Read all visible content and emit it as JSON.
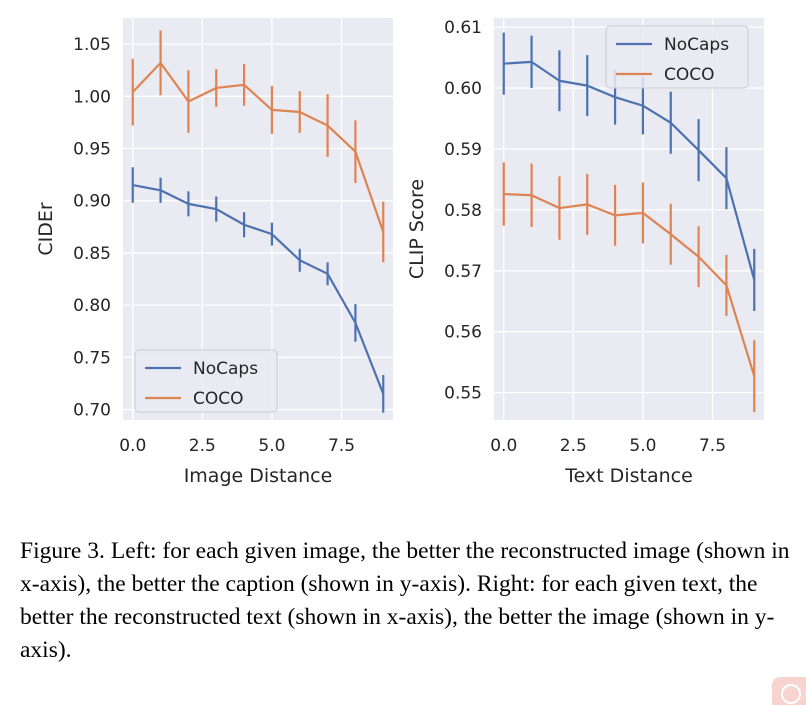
{
  "chart_data": [
    {
      "type": "line",
      "xlabel": "Image Distance",
      "ylabel": "CIDEr",
      "xlim": [
        -0.35,
        9.35
      ],
      "ylim": [
        0.69,
        1.075
      ],
      "xticks": [
        0.0,
        2.5,
        5.0,
        7.5
      ],
      "xtick_labels": [
        "0.0",
        "2.5",
        "5.0",
        "7.5"
      ],
      "yticks": [
        0.7,
        0.75,
        0.8,
        0.85,
        0.9,
        0.95,
        1.0,
        1.05
      ],
      "ytick_labels": [
        "0.70",
        "0.75",
        "0.80",
        "0.85",
        "0.90",
        "0.95",
        "1.00",
        "1.05"
      ],
      "grid": true,
      "legend_position": "bottom-left",
      "x": [
        0,
        1,
        2,
        3,
        4,
        5,
        6,
        7,
        8,
        9
      ],
      "series": [
        {
          "name": "NoCaps",
          "color": "#4c72b0",
          "values": [
            0.915,
            0.91,
            0.897,
            0.892,
            0.877,
            0.868,
            0.843,
            0.83,
            0.783,
            0.715
          ],
          "error": [
            0.017,
            0.012,
            0.012,
            0.012,
            0.012,
            0.011,
            0.011,
            0.011,
            0.018,
            0.018
          ]
        },
        {
          "name": "COCO",
          "color": "#dd8452",
          "values": [
            1.004,
            1.032,
            0.995,
            1.008,
            1.011,
            0.987,
            0.985,
            0.972,
            0.947,
            0.87
          ],
          "error": [
            0.032,
            0.031,
            0.03,
            0.018,
            0.02,
            0.023,
            0.02,
            0.03,
            0.03,
            0.029
          ]
        }
      ]
    },
    {
      "type": "line",
      "xlabel": "Text Distance",
      "ylabel": "CLIP Score",
      "xlim": [
        -0.35,
        9.35
      ],
      "ylim": [
        0.5455,
        0.6115
      ],
      "xticks": [
        0.0,
        2.5,
        5.0,
        7.5
      ],
      "xtick_labels": [
        "0.0",
        "2.5",
        "5.0",
        "7.5"
      ],
      "yticks": [
        0.55,
        0.56,
        0.57,
        0.58,
        0.59,
        0.6,
        0.61
      ],
      "ytick_labels": [
        "0.55",
        "0.56",
        "0.57",
        "0.58",
        "0.59",
        "0.60",
        "0.61"
      ],
      "grid": true,
      "legend_position": "top-right",
      "x": [
        0,
        1,
        2,
        3,
        4,
        5,
        6,
        7,
        8,
        9
      ],
      "series": [
        {
          "name": "NoCaps",
          "color": "#4c72b0",
          "values": [
            0.604,
            0.6043,
            0.6012,
            0.6004,
            0.5985,
            0.5971,
            0.5943,
            0.5898,
            0.5852,
            0.5685
          ],
          "error": [
            0.0051,
            0.0043,
            0.005,
            0.005,
            0.0045,
            0.0047,
            0.0051,
            0.0051,
            0.0051,
            0.0051
          ]
        },
        {
          "name": "COCO",
          "color": "#dd8452",
          "values": [
            0.5826,
            0.5824,
            0.5803,
            0.5809,
            0.5791,
            0.5795,
            0.576,
            0.5723,
            0.5676,
            0.5527
          ],
          "error": [
            0.0052,
            0.0052,
            0.0052,
            0.005,
            0.005,
            0.005,
            0.005,
            0.005,
            0.005,
            0.0059
          ]
        }
      ]
    }
  ],
  "caption": {
    "label": "Figure 3.",
    "text": "Left: for each given image, the better the reconstructed image (shown in x-axis), the better the caption (shown in y-axis). Right: for each given text, the better the reconstructed text (shown in x-axis), the better the image (shown in y-axis)."
  }
}
